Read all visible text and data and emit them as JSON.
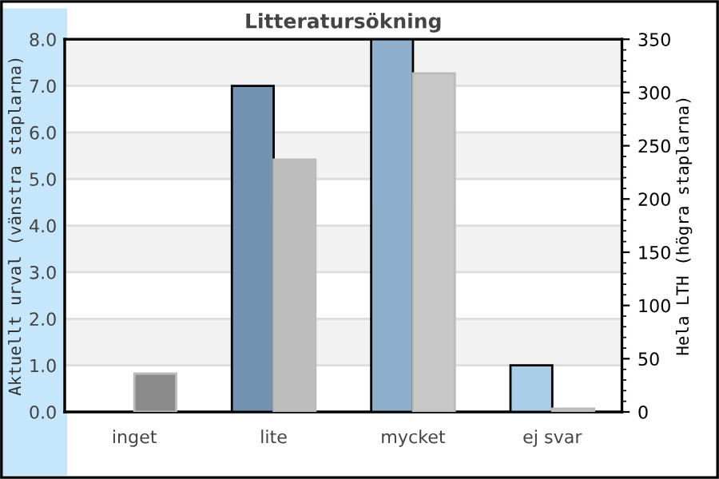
{
  "chart_data": {
    "type": "bar",
    "title": "Litteratursökning",
    "ylabel": "Aktuellt urval (vänstra staplarna)",
    "y2label": "Hela LTH (högra staplarna)",
    "categories": [
      "inget",
      "lite",
      "mycket",
      "ej svar"
    ],
    "series": [
      {
        "colors": [
          "#7393b0",
          "#7393b0",
          "#8fb0cc",
          "#aacde8"
        ],
        "values": [
          0,
          7,
          8,
          1
        ]
      },
      {
        "colors": [
          "#8a8a8a",
          "#bebebe",
          "#c8c8c8",
          "#c8c8c8"
        ],
        "values": [
          36,
          237,
          318,
          3
        ],
        "axis": "y2"
      }
    ],
    "ylim": [
      0,
      8
    ],
    "yticks": [
      {
        "value": 0,
        "label": "0.0"
      },
      {
        "value": 1,
        "label": "1.0"
      },
      {
        "value": 2,
        "label": "2.0"
      },
      {
        "value": 3,
        "label": "3.0"
      },
      {
        "value": 4,
        "label": "4.0"
      },
      {
        "value": 5,
        "label": "5.0"
      },
      {
        "value": 6,
        "label": "6.0"
      },
      {
        "value": 7,
        "label": "7.0"
      },
      {
        "value": 8,
        "label": "8.0"
      }
    ],
    "y2lim": [
      0,
      350
    ],
    "y2ticks": [
      0,
      50,
      100,
      150,
      200,
      250,
      300,
      350
    ],
    "grid": "y"
  }
}
